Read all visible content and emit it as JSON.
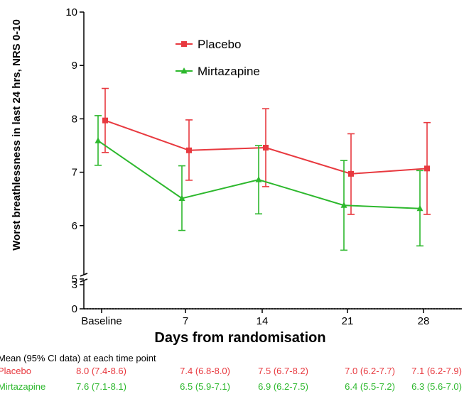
{
  "chart_data": {
    "type": "line",
    "title": "",
    "ylabel": "Worst breathlessness in last 24 hrs, NRS 0-10",
    "xlabel": "Days from randomisation",
    "categories": [
      "Baseline",
      "7",
      "14",
      "21",
      "28"
    ],
    "y_ticks_upper": [
      "5",
      "6",
      "7",
      "8",
      "9",
      "10"
    ],
    "y_ticks_lower": [
      "0",
      "3"
    ],
    "ylim": [
      5,
      10
    ],
    "y_axis_break": [
      3,
      5
    ],
    "grid": false,
    "legend_position": "top-center",
    "series": [
      {
        "name": "Placebo",
        "color": "#e8393f",
        "marker": "square",
        "values": [
          7.97,
          7.41,
          7.46,
          6.97,
          7.07
        ],
        "ci_low": [
          7.37,
          6.85,
          6.73,
          6.21,
          6.21
        ],
        "ci_high": [
          8.57,
          7.98,
          8.19,
          7.72,
          7.93
        ]
      },
      {
        "name": "Mirtazapine",
        "color": "#2db82d",
        "marker": "triangle",
        "values": [
          7.59,
          6.51,
          6.86,
          6.38,
          6.32
        ],
        "ci_low": [
          7.13,
          5.91,
          6.22,
          5.54,
          5.62
        ],
        "ci_high": [
          8.06,
          7.12,
          7.5,
          7.22,
          7.03
        ]
      }
    ]
  },
  "table": {
    "caption": "Mean (95% CI data) at each time point",
    "rows": [
      {
        "label": "Placebo",
        "color": "#e8393f",
        "cells": [
          "8.0 (7.4-8.6)",
          "7.4 (6.8-8.0)",
          "7.5 (6.7-8.2)",
          "7.0 (6.2-7.7)",
          "7.1 (6.2-7.9)"
        ]
      },
      {
        "label": "Mirtazapine",
        "color": "#2db82d",
        "cells": [
          "7.6 (7.1-8.1)",
          "6.5 (5.9-7.1)",
          "6.9 (6.2-7.5)",
          "6.4 (5.5-7.2)",
          "6.3 (5.6-7.0)"
        ]
      }
    ]
  }
}
